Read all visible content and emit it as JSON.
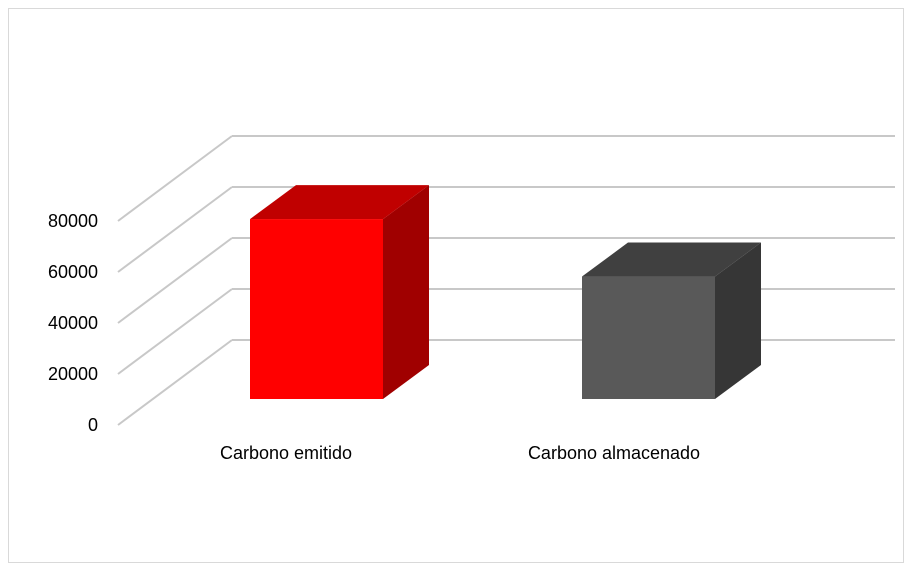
{
  "chart_data": {
    "type": "bar",
    "style": "3d-column",
    "categories": [
      "Carbono emitido",
      "Carbono almacenado"
    ],
    "values": [
      72000,
      49000
    ],
    "ylim": [
      0,
      80000
    ],
    "yticks": [
      0,
      20000,
      40000,
      60000,
      80000
    ],
    "ytick_labels": [
      "0",
      "20000",
      "40000",
      "60000",
      "80000"
    ],
    "grid": true,
    "colors": [
      "#ff0000",
      "#595959"
    ],
    "side_colors": [
      "#a00000",
      "#363636"
    ],
    "top_colors": [
      "#c00000",
      "#404040"
    ]
  }
}
